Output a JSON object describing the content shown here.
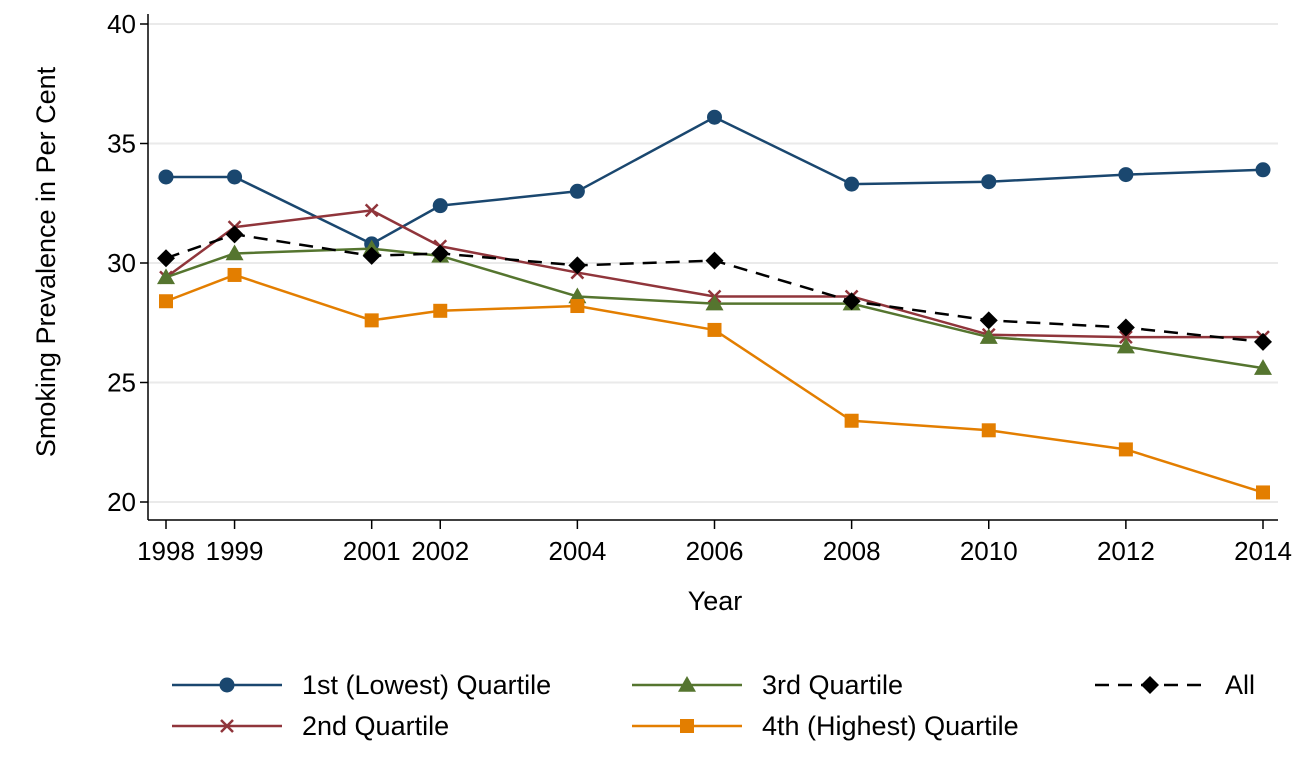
{
  "chart_data": {
    "type": "line",
    "title": "",
    "xlabel": "Year",
    "ylabel": "Smoking Prevalence in Per Cent",
    "x": [
      1998,
      1999,
      2001,
      2002,
      2004,
      2006,
      2008,
      2010,
      2012,
      2014
    ],
    "xlim": [
      1998,
      2014
    ],
    "ylim": [
      20,
      40
    ],
    "yticks": [
      20,
      25,
      30,
      35,
      40
    ],
    "grid": true,
    "legend_position": "bottom",
    "series": [
      {
        "name": "1st (Lowest) Quartile",
        "values": [
          33.6,
          33.6,
          30.8,
          32.4,
          33.0,
          36.1,
          33.3,
          33.4,
          33.7,
          33.9
        ],
        "color": "#1a476f",
        "marker": "circle",
        "dash": "solid"
      },
      {
        "name": "2nd Quartile",
        "values": [
          29.4,
          31.5,
          32.2,
          30.7,
          29.6,
          28.6,
          28.6,
          27.0,
          26.9,
          26.9
        ],
        "color": "#90353b",
        "marker": "x",
        "dash": "solid"
      },
      {
        "name": "3rd Quartile",
        "values": [
          29.4,
          30.4,
          30.6,
          30.3,
          28.6,
          28.3,
          28.3,
          26.9,
          26.5,
          25.6
        ],
        "color": "#55752f",
        "marker": "triangle",
        "dash": "solid"
      },
      {
        "name": "4th (Highest) Quartile",
        "values": [
          28.4,
          29.5,
          27.6,
          28.0,
          28.2,
          27.2,
          23.4,
          23.0,
          22.2,
          20.4
        ],
        "color": "#e37e00",
        "marker": "square",
        "dash": "solid"
      },
      {
        "name": "All",
        "values": [
          30.2,
          31.2,
          30.3,
          30.4,
          29.9,
          30.1,
          28.4,
          27.6,
          27.3,
          26.7
        ],
        "color": "#000000",
        "marker": "diamond",
        "dash": "dashed"
      }
    ]
  },
  "colors": {
    "grid": "#eaeaea",
    "axis": "#000000"
  }
}
